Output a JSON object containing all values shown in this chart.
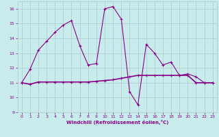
{
  "xlabel": "Windchill (Refroidissement éolien,°C)",
  "background_color": "#c8ecec",
  "grid_color": "#b0c8c8",
  "line_color": "#880088",
  "x_values": [
    0,
    1,
    2,
    3,
    4,
    5,
    6,
    7,
    8,
    9,
    10,
    11,
    12,
    13,
    14,
    15,
    16,
    17,
    18,
    19,
    20,
    21,
    22,
    23
  ],
  "y1_values": [
    11.0,
    11.9,
    13.2,
    13.8,
    14.4,
    14.9,
    15.2,
    13.5,
    12.2,
    12.3,
    16.0,
    16.15,
    15.3,
    10.4,
    9.5,
    13.6,
    13.0,
    12.2,
    12.4,
    11.5,
    11.6,
    11.4,
    11.0,
    11.0
  ],
  "y2_values": [
    11.0,
    10.9,
    11.05,
    11.05,
    11.05,
    11.05,
    11.05,
    11.05,
    11.05,
    11.1,
    11.15,
    11.2,
    11.3,
    11.4,
    11.5,
    11.5,
    11.5,
    11.5,
    11.5,
    11.5,
    11.5,
    11.0,
    11.0,
    11.0
  ],
  "ylim": [
    9,
    16.5
  ],
  "yticks": [
    9,
    10,
    11,
    12,
    13,
    14,
    15,
    16
  ],
  "xlim": [
    -0.5,
    23.5
  ],
  "xticks": [
    0,
    1,
    2,
    3,
    4,
    5,
    6,
    7,
    8,
    9,
    10,
    11,
    12,
    13,
    14,
    15,
    16,
    17,
    18,
    19,
    20,
    21,
    22,
    23
  ]
}
